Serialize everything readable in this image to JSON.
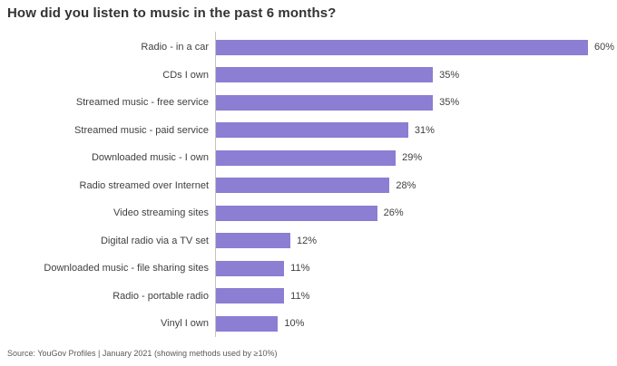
{
  "title": "How did you listen to music in the past 6 months?",
  "source": "Source: YouGov Profiles | January 2021 (showing methods used by ≥10%)",
  "colors": {
    "bar": "#8b7ed3",
    "title_text": "#333333",
    "label_text": "#404040",
    "axis_line": "#c4c4c4",
    "source_text": "#595959",
    "background": "#ffffff"
  },
  "chart_data": {
    "type": "bar",
    "orientation": "horizontal",
    "title": "How did you listen to music in the past 6 months?",
    "categories": [
      "Radio - in a car",
      "CDs I own",
      "Streamed music - free service",
      "Streamed music - paid service",
      "Downloaded music - I own",
      "Radio streamed over Internet",
      "Video streaming sites",
      "Digital radio via a TV set",
      "Downloaded music - file sharing sites",
      "Radio - portable radio",
      "Vinyl I own"
    ],
    "values": [
      60,
      35,
      35,
      31,
      29,
      28,
      26,
      12,
      11,
      11,
      10
    ],
    "value_labels": [
      "60%",
      "35%",
      "35%",
      "31%",
      "29%",
      "28%",
      "26%",
      "12%",
      "11%",
      "11%",
      "10%"
    ],
    "value_format": "percent",
    "xlabel": "",
    "ylabel": "",
    "xlim": [
      0,
      60
    ],
    "grid": false,
    "legend": false,
    "annotation": "Source: YouGov Profiles | January 2021 (showing methods used by ≥10%)"
  }
}
